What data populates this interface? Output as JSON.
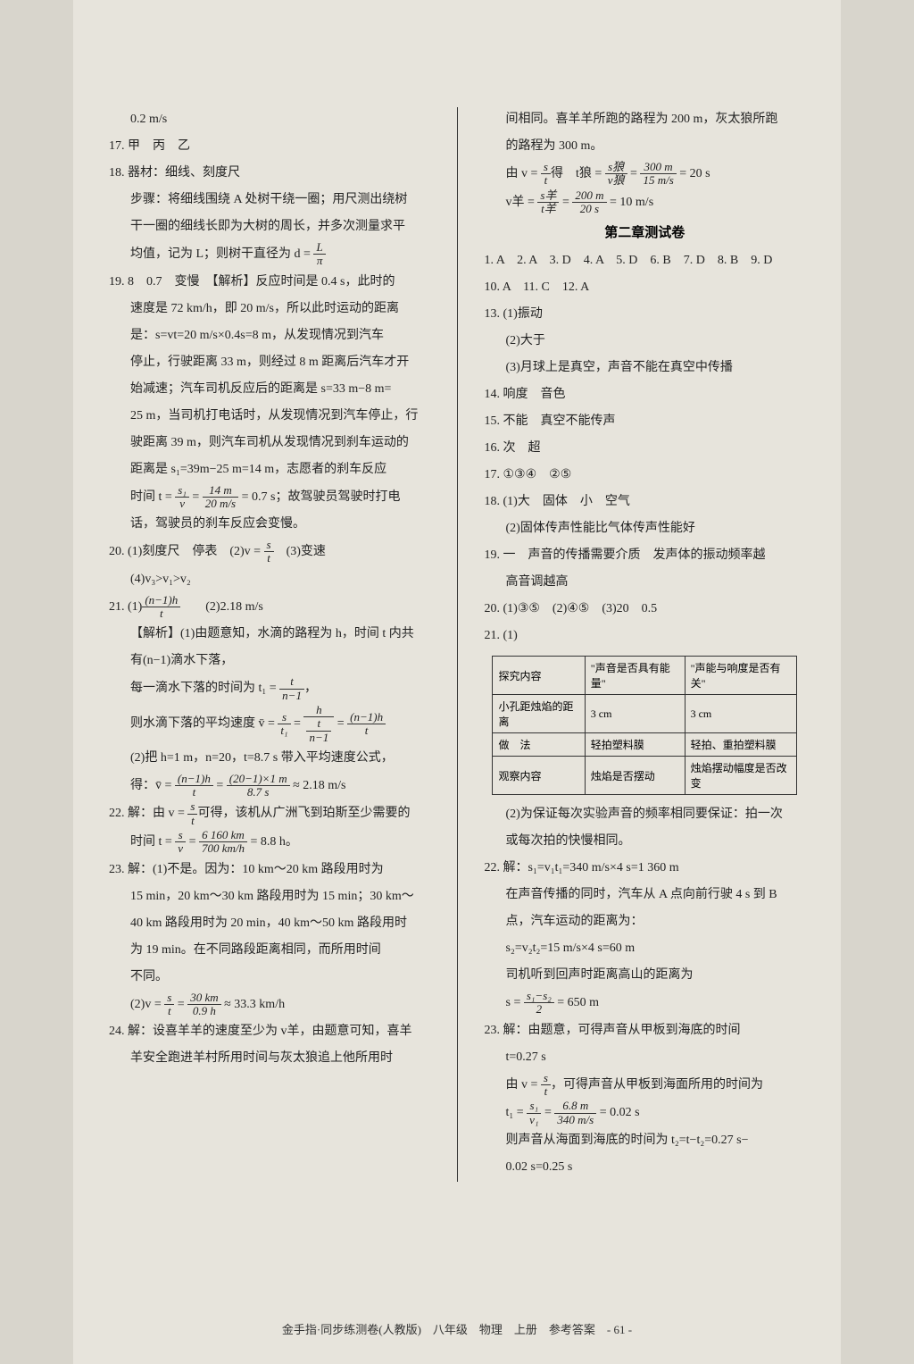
{
  "left": {
    "l1": "0.2 m/s",
    "l2": "17. 甲　丙　乙",
    "l3": "18. 器材：细线、刻度尺",
    "l4": "步骤：将细线围绕 A 处树干绕一圈；用尺测出绕树",
    "l5": "干一圈的细线长即为大树的周长，并多次测量求平",
    "l6a": "均值，记为 L；则树干直径为 d = ",
    "l6_num": "L",
    "l6_den": "π",
    "l7": "19. 8　0.7　变慢　【解析】反应时间是 0.4 s，此时的",
    "l8": "速度是 72 km/h，即 20 m/s，所以此时运动的距离",
    "l9": "是：s=vt=20 m/s×0.4s=8 m，从发现情况到汽车",
    "l10": "停止，行驶距离 33 m，则经过 8 m 距离后汽车才开",
    "l11": "始减速；汽车司机反应后的距离是 s=33 m−8 m=",
    "l12": "25 m，当司机打电话时，从发现情况到汽车停止，行",
    "l13": "驶距离 39 m，则汽车司机从发现情况到刹车运动的",
    "l14": "距离是 s₁=39m−25 m=14 m，志愿者的刹车反应",
    "l15a": "时间 t = ",
    "l15_num1": "s₁",
    "l15_den1": "v",
    "l15b": " = ",
    "l15_num2": "14 m",
    "l15_den2": "20 m/s",
    "l15c": " = 0.7 s；故驾驶员驾驶时打电",
    "l16": "话，驾驶员的刹车反应会变慢。",
    "l17a": "20. (1)刻度尺　停表　(2)v = ",
    "l17_num": "s",
    "l17_den": "t",
    "l17b": "　(3)变速",
    "l18": "(4)v₃>v₁>v₂",
    "l19a": "21. (1)",
    "l19_num": "(n−1)h",
    "l19_den": "t",
    "l19b": "　　(2)2.18 m/s",
    "l20": "【解析】(1)由题意知，水滴的路程为 h，时间 t 内共",
    "l21": "有(n−1)滴水下落，",
    "l22a": "每一滴水下落的时间为 t₁ = ",
    "l22_num": "t",
    "l22_den": "n−1",
    "l22b": "，",
    "l23a": "则水滴下落的平均速度 v̄ = ",
    "l23_num1": "s",
    "l23_den1": "t₁",
    "l23b": " = ",
    "l23_num2": "h",
    "l23_den2a": "t",
    "l23_den2b": "n−1",
    "l23c": " = ",
    "l23_num3": "(n−1)h",
    "l23_den3": "t",
    "l24": "(2)把 h=1 m，n=20，t=8.7 s 带入平均速度公式，",
    "l25a": "得：v̄ = ",
    "l25_num1": "(n−1)h",
    "l25_den1": "t",
    "l25b": " = ",
    "l25_num2": "(20−1)×1 m",
    "l25_den2": "8.7 s",
    "l25c": " ≈ 2.18 m/s",
    "l26a": "22. 解：由 v = ",
    "l26_num": "s",
    "l26_den": "t",
    "l26b": "可得，该机从广洲飞到珀斯至少需要的",
    "l27a": "时间 t = ",
    "l27_num1": "s",
    "l27_den1": "v",
    "l27b": " = ",
    "l27_num2": "6 160 km",
    "l27_den2": "700 km/h",
    "l27c": " = 8.8 h。",
    "l28": "23. 解：(1)不是。因为：10 km～20 km 路段用时为",
    "l29": "15 min，20 km～30 km 路段用时为 15 min；30 km～",
    "l30": "40 km 路段用时为 20 min，40 km～50 km 路段用时",
    "l31": "为 19 min。在不同路段距离相同，而所用时间",
    "l32": "不同。",
    "l33a": "(2)v = ",
    "l33_num1": "s",
    "l33_den1": "t",
    "l33b": " = ",
    "l33_num2": "30 km",
    "l33_den2": "0.9 h",
    "l33c": " ≈ 33.3 km/h",
    "l34": "24. 解：设喜羊羊的速度至少为 v羊，由题意可知，喜羊",
    "l35": "羊安全跑进羊村所用时间与灰太狼追上他所用时"
  },
  "right": {
    "r1": "间相同。喜羊羊所跑的路程为 200 m，灰太狼所跑",
    "r2": "的路程为 300 m。",
    "r3a": "由 v = ",
    "r3_num1": "s",
    "r3_den1": "t",
    "r3b": "得　t狼 = ",
    "r3_num2": "s狼",
    "r3_den2": "v狼",
    "r3c": " = ",
    "r3_num3": "300 m",
    "r3_den3": "15 m/s",
    "r3d": " = 20 s",
    "r4a": "v羊 = ",
    "r4_num1": "s羊",
    "r4_den1": "t羊",
    "r4b": " = ",
    "r4_num2": "200 m",
    "r4_den2": "20 s",
    "r4c": " = 10 m/s",
    "r5_title": "第二章测试卷",
    "r6": "1. A　2. A　3. D　4. A　5. D　6. B　7. D　8. B　9. D",
    "r7": "10. A　11. C　12. A",
    "r8": "13. (1)振动",
    "r9": "(2)大于",
    "r10": "(3)月球上是真空，声音不能在真空中传播",
    "r11": "14. 响度　音色",
    "r12": "15. 不能　真空不能传声",
    "r13": "16. 次　超",
    "r14": "17. ①③④　②⑤",
    "r15": "18. (1)大　固体　小　空气",
    "r16": "(2)固体传声性能比气体传声性能好",
    "r17": "19. 一　声音的传播需要介质　发声体的振动频率越",
    "r18": "高音调越高",
    "r19": "20. (1)③⑤　(2)④⑤　(3)20　0.5",
    "r20": "21. (1)",
    "table": {
      "h1": "探究内容",
      "h2": "\"声音是否具有能量\"",
      "h3": "\"声能与响度是否有关\"",
      "row1_c1": "小孔距烛焰的距离",
      "row1_c2": "3 cm",
      "row1_c3": "3 cm",
      "row2_c1": "做　法",
      "row2_c2": "轻拍塑料膜",
      "row2_c3": "轻拍、重拍塑料膜",
      "row3_c1": "观察内容",
      "row3_c2": "烛焰是否摆动",
      "row3_c3": "烛焰摆动幅度是否改变"
    },
    "r21": "(2)为保证每次实验声音的频率相同要保证：拍一次",
    "r22": "或每次拍的快慢相同。",
    "r23": "22. 解：s₁=v₁t₁=340 m/s×4 s=1 360 m",
    "r24": "在声音传播的同时，汽车从 A 点向前行驶 4 s 到 B",
    "r25": "点，汽车运动的距离为：",
    "r26": "s₂=v₂t₂=15 m/s×4 s=60 m",
    "r27": "司机听到回声时距离高山的距离为",
    "r28a": "s = ",
    "r28_num": "s₁−s₂",
    "r28_den": "2",
    "r28b": " = 650 m",
    "r29": "23. 解：由题意，可得声音从甲板到海底的时间",
    "r30": "t=0.27 s",
    "r31a": "由 v = ",
    "r31_num": "s",
    "r31_den": "t",
    "r31b": "，可得声音从甲板到海面所用的时间为",
    "r32a": "t₁ = ",
    "r32_num1": "s₁",
    "r32_den1": "v₁",
    "r32b": " = ",
    "r32_num2": "6.8 m",
    "r32_den2": "340 m/s",
    "r32c": " = 0.02 s",
    "r33": "则声音从海面到海底的时间为 t₂=t−t₂=0.27 s−",
    "r34": "0.02 s=0.25 s"
  },
  "footer": "金手指·同步练测卷(人教版)　八年级　物理　上册　参考答案　- 61 -"
}
